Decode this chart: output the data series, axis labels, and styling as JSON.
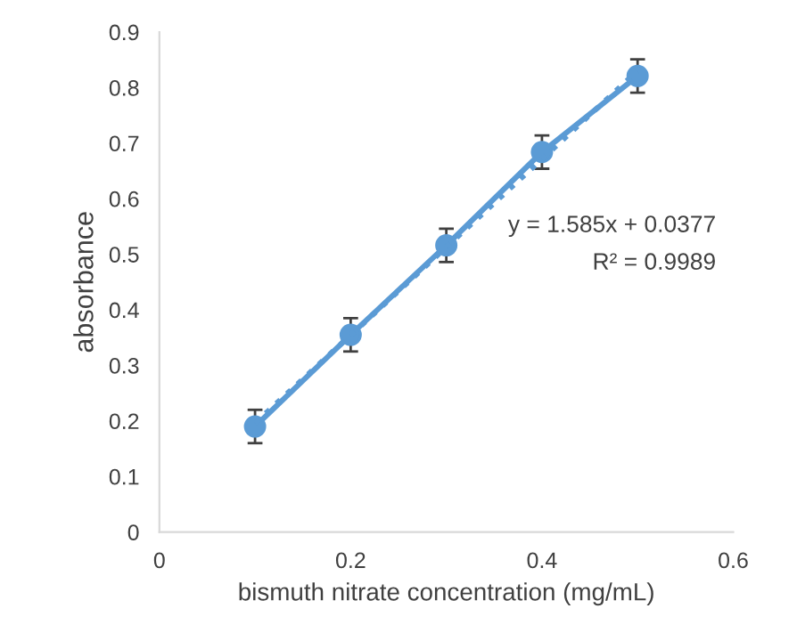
{
  "chart_data": {
    "type": "line",
    "xlabel": "bismuth nitrate concentration (mg/mL)",
    "ylabel": "absorbance",
    "xlim": [
      0,
      0.6
    ],
    "xticks": [
      0,
      0.2,
      0.4,
      0.6
    ],
    "ylim": [
      0,
      0.9
    ],
    "yticks": [
      0,
      0.1,
      0.2,
      0.3,
      0.4,
      0.5,
      0.6,
      0.7,
      0.8,
      0.9
    ],
    "grid": false,
    "legend": false,
    "marker": "circle",
    "series": [
      {
        "color": "#5b9bd5",
        "x": [
          0.1,
          0.2,
          0.3,
          0.4,
          0.5
        ],
        "values": [
          0.19,
          0.355,
          0.516,
          0.684,
          0.821
        ],
        "errors": [
          0.03,
          0.03,
          0.03,
          0.03,
          0.03
        ],
        "line_style": "solid"
      },
      {
        "color": "#5b9bd5",
        "x": [
          0.1,
          0.5
        ],
        "values": [
          0.196,
          0.83
        ],
        "marker": "none",
        "line_style": "dotted"
      }
    ],
    "annotations": [
      "y = 1.585x + 0.0377",
      "R² = 0.9989"
    ]
  }
}
